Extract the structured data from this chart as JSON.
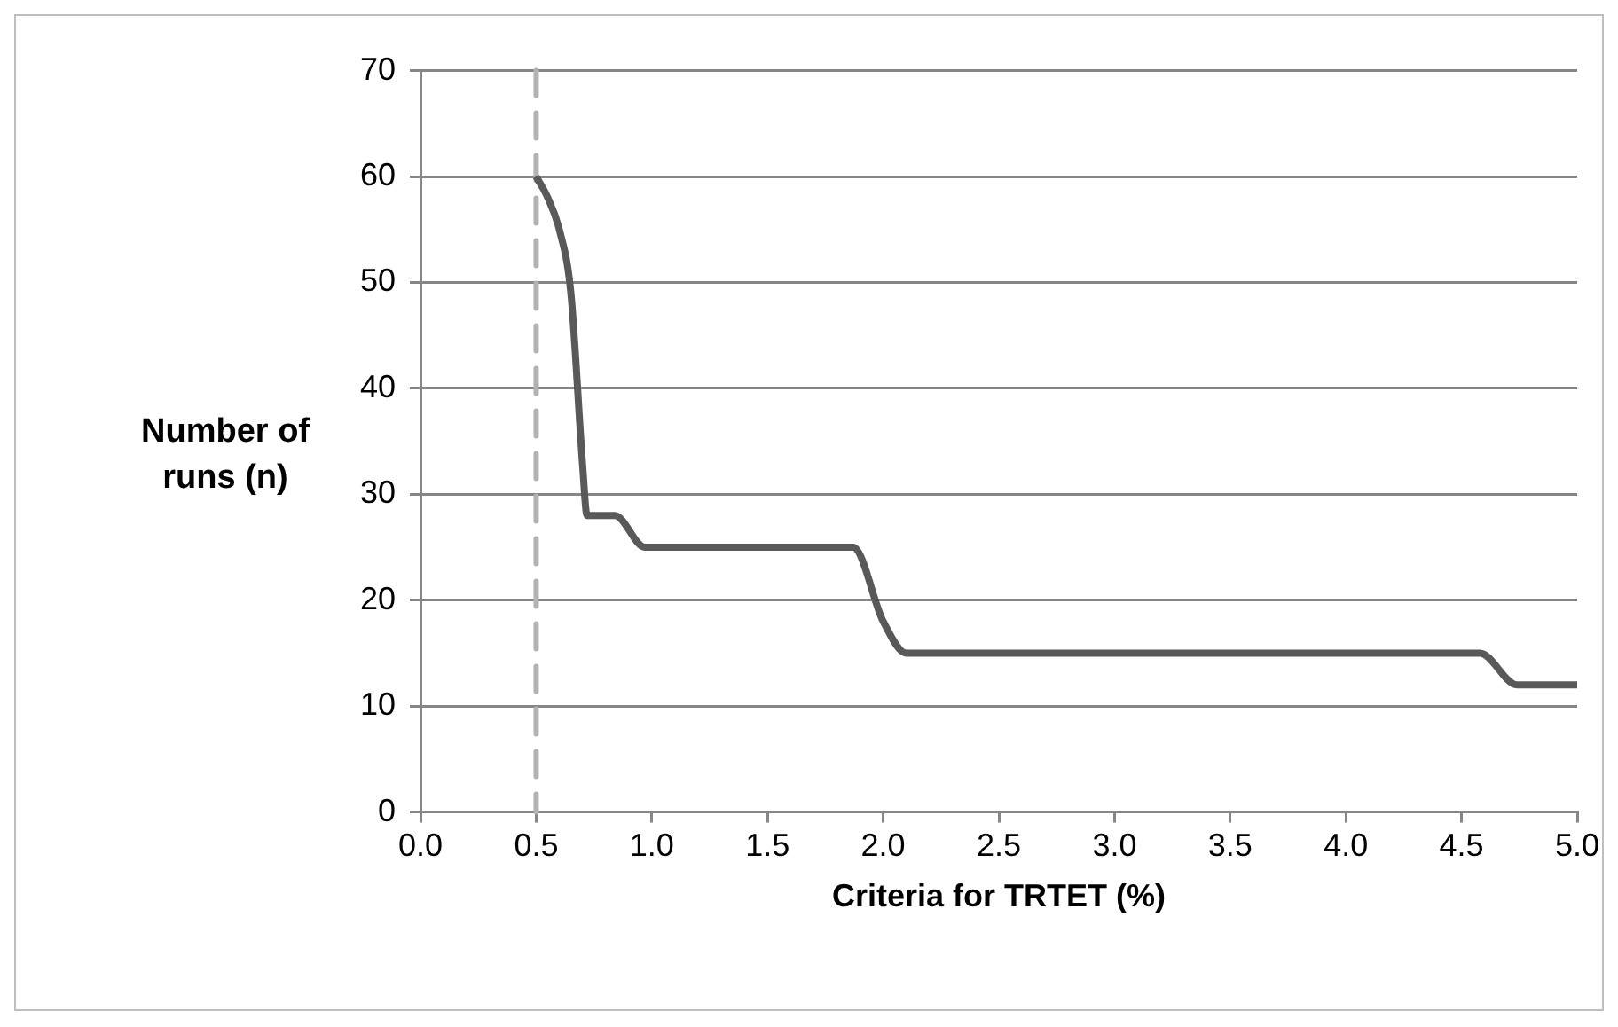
{
  "chart_data": {
    "type": "line",
    "xlabel": "Criteria for TRTET (%)",
    "ylabel": "Number of runs (n)",
    "series": [
      {
        "color": "#595959",
        "x": [
          0.5,
          0.55,
          0.6,
          0.65,
          0.7,
          0.72,
          0.84,
          0.97,
          1.87,
          2.0,
          2.1,
          4.58,
          4.74,
          5.0
        ],
        "values": [
          60,
          58,
          55,
          49,
          33,
          28,
          28,
          25,
          25,
          18,
          15,
          15,
          12,
          12
        ]
      }
    ],
    "xlim": [
      0,
      5
    ],
    "xticks": [
      {
        "value": 0,
        "label": "0.0"
      },
      {
        "value": 0.5,
        "label": "0.5"
      },
      {
        "value": 1,
        "label": "1.0"
      },
      {
        "value": 1.5,
        "label": "1.5"
      },
      {
        "value": 2,
        "label": "2.0"
      },
      {
        "value": 2.5,
        "label": "2.5"
      },
      {
        "value": 3,
        "label": "3.0"
      },
      {
        "value": 3.5,
        "label": "3.5"
      },
      {
        "value": 4,
        "label": "4.0"
      },
      {
        "value": 4.5,
        "label": "4.5"
      },
      {
        "value": 5,
        "label": "5.0"
      }
    ],
    "ylim": [
      0,
      70
    ],
    "yticks": [
      0,
      10,
      20,
      30,
      40,
      50,
      60,
      70
    ],
    "ref_lines": [
      {
        "axis": "x",
        "value": 0.5,
        "color": "#b3b3b3",
        "line_style": "dashed"
      }
    ],
    "grid": "y",
    "legend": false,
    "marker": "none",
    "line_style": "solid"
  }
}
